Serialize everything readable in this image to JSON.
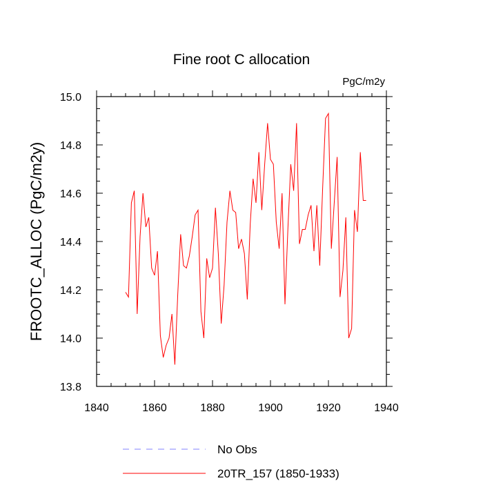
{
  "chart_data": {
    "type": "line",
    "title": "Fine root C allocation",
    "units_label": "PgC/m2y",
    "xlabel": "",
    "ylabel": "FROOTC_ALLOC  (PgC/m2y)",
    "xlim": [
      1840,
      1940
    ],
    "ylim": [
      13.8,
      15.0
    ],
    "x_ticks": [
      1840,
      1860,
      1880,
      1900,
      1920,
      1940
    ],
    "x_tick_labels": [
      "1840",
      "1860",
      "1880",
      "1900",
      "1920",
      "1940"
    ],
    "y_ticks": [
      13.8,
      14.0,
      14.2,
      14.4,
      14.6,
      14.8,
      15.0
    ],
    "y_tick_labels": [
      "13.8",
      "14.0",
      "14.2",
      "14.4",
      "14.6",
      "14.8",
      "15.0"
    ],
    "grid": false,
    "legend": [
      {
        "label": "No Obs",
        "color": "#8080ff",
        "style": "dashed"
      },
      {
        "label": "20TR_157 (1850-1933)",
        "color": "#ff0000",
        "style": "solid"
      }
    ],
    "series": [
      {
        "name": "20TR_157 (1850-1933)",
        "color": "#ff0000",
        "x": [
          1850,
          1851,
          1852,
          1853,
          1854,
          1855,
          1856,
          1857,
          1858,
          1859,
          1860,
          1861,
          1862,
          1863,
          1864,
          1865,
          1866,
          1867,
          1868,
          1869,
          1870,
          1871,
          1872,
          1873,
          1874,
          1875,
          1876,
          1877,
          1878,
          1879,
          1880,
          1881,
          1882,
          1883,
          1884,
          1885,
          1886,
          1887,
          1888,
          1889,
          1890,
          1891,
          1892,
          1893,
          1894,
          1895,
          1896,
          1897,
          1898,
          1899,
          1900,
          1901,
          1902,
          1903,
          1904,
          1905,
          1906,
          1907,
          1908,
          1909,
          1910,
          1911,
          1912,
          1913,
          1914,
          1915,
          1916,
          1917,
          1918,
          1919,
          1920,
          1921,
          1922,
          1923,
          1924,
          1925,
          1926,
          1927,
          1928,
          1929,
          1930,
          1931,
          1932,
          1933
        ],
        "values": [
          14.19,
          14.17,
          14.56,
          14.61,
          14.1,
          14.42,
          14.6,
          14.46,
          14.5,
          14.29,
          14.26,
          14.36,
          14.01,
          13.92,
          13.97,
          14.0,
          14.1,
          13.89,
          14.18,
          14.43,
          14.3,
          14.29,
          14.34,
          14.42,
          14.51,
          14.53,
          14.11,
          14.0,
          14.33,
          14.25,
          14.29,
          14.54,
          14.35,
          14.06,
          14.22,
          14.48,
          14.61,
          14.53,
          14.52,
          14.37,
          14.41,
          14.35,
          14.16,
          14.47,
          14.66,
          14.56,
          14.77,
          14.53,
          14.72,
          14.89,
          14.74,
          14.72,
          14.48,
          14.37,
          14.6,
          14.14,
          14.45,
          14.72,
          14.61,
          14.89,
          14.39,
          14.45,
          14.45,
          14.51,
          14.55,
          14.36,
          14.55,
          14.3,
          14.62,
          14.91,
          14.93,
          14.37,
          14.56,
          14.75,
          14.17,
          14.28,
          14.5,
          14.0,
          14.04,
          14.53,
          14.44,
          14.77,
          14.57,
          14.57
        ]
      }
    ]
  }
}
